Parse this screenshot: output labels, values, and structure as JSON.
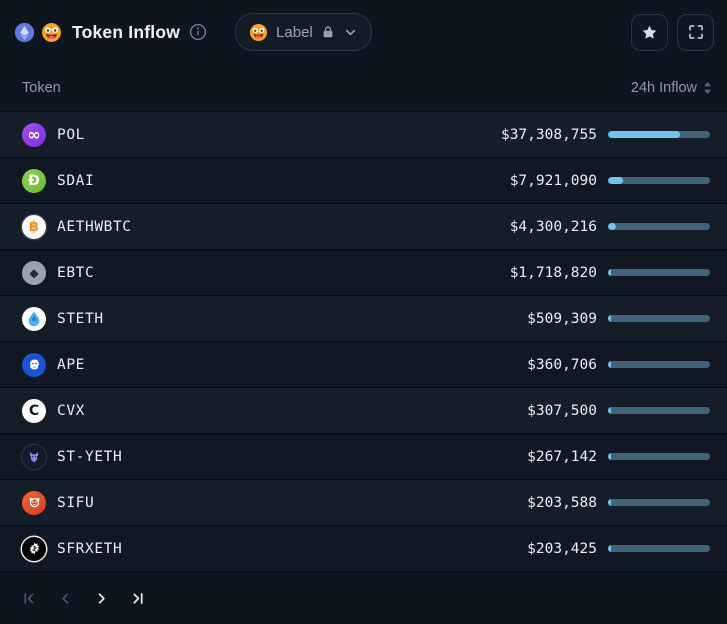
{
  "header": {
    "chain_icon": "ethereum-icon",
    "emoji_icon": "smiley-emoji-icon",
    "title": "Token Inflow",
    "info_icon": "info-icon",
    "label_button": {
      "emoji_icon": "smiley-emoji-icon",
      "text": "Label",
      "lock_icon": "lock-icon",
      "chevron_icon": "chevron-down-icon"
    },
    "actions": {
      "favorite_icon": "star-icon",
      "fullscreen_icon": "expand-icon"
    }
  },
  "table": {
    "columns": [
      {
        "label": "Token",
        "align": "left"
      },
      {
        "label": "24h Inflow",
        "align": "right",
        "sortable": true
      }
    ],
    "rows": [
      {
        "token": "POL",
        "value": "$37,308,755",
        "value_num": 37308755,
        "bar_pct": 70.3,
        "icon": {
          "name": "pol-token-icon",
          "kind": "glyph",
          "glyph": "∞",
          "fs": 16,
          "fg": "#ffffff",
          "bg": "#7b2fe0",
          "bg2": "#a44df0"
        }
      },
      {
        "token": "SDAI",
        "value": "$7,921,090",
        "value_num": 7921090,
        "bar_pct": 14.9,
        "icon": {
          "name": "sdai-token-icon",
          "kind": "glyph",
          "glyph": "Đ",
          "fs": 14,
          "fg": "#ffffff",
          "bg": "#6fb83a",
          "bg2": "#8bd14f"
        }
      },
      {
        "token": "AETHWBTC",
        "value": "$4,300,216",
        "value_num": 4300216,
        "bar_pct": 8.1,
        "icon": {
          "name": "aethwbtc-token-icon",
          "kind": "glyph",
          "glyph": "฿",
          "fs": 14,
          "fg": "#f7931a",
          "bg": "#f8f9fa",
          "ring": "#343b46"
        }
      },
      {
        "token": "EBTC",
        "value": "$1,718,820",
        "value_num": 1718820,
        "bar_pct": 3.2,
        "icon": {
          "name": "ebtc-token-icon",
          "kind": "glyph",
          "glyph": "◆",
          "fs": 12,
          "fg": "#242b37",
          "bg": "#9aa1ac"
        }
      },
      {
        "token": "STETH",
        "value": "$509,309",
        "value_num": 509309,
        "bar_pct": 1.0,
        "icon": {
          "name": "steth-token-icon",
          "kind": "svg",
          "svg": "droplet",
          "bg": "#ffffff"
        }
      },
      {
        "token": "APE",
        "value": "$360,706",
        "value_num": 360706,
        "bar_pct": 0.7,
        "icon": {
          "name": "ape-token-icon",
          "kind": "svg",
          "svg": "ape",
          "bg": "#1b52d6"
        }
      },
      {
        "token": "CVX",
        "value": "$307,500",
        "value_num": 307500,
        "bar_pct": 0.6,
        "icon": {
          "name": "cvx-token-icon",
          "kind": "glyph",
          "glyph": "C",
          "fs": 14,
          "fg": "#16181d",
          "bg": "#ffffff"
        }
      },
      {
        "token": "ST-YETH",
        "value": "$267,142",
        "value_num": 267142,
        "bar_pct": 0.5,
        "icon": {
          "name": "st-yeth-token-icon",
          "kind": "svg",
          "svg": "yeth",
          "bg": "#141a28",
          "ring": "#262e3e"
        }
      },
      {
        "token": "SIFU",
        "value": "$203,588",
        "value_num": 203588,
        "bar_pct": 0.4,
        "icon": {
          "name": "sifu-token-icon",
          "kind": "svg",
          "svg": "panda",
          "bg": "#d83a2a",
          "bg2": "#f0672e"
        }
      },
      {
        "token": "SFRXETH",
        "value": "$203,425",
        "value_num": 203425,
        "bar_pct": 0.4,
        "icon": {
          "name": "sfrxeth-token-icon",
          "kind": "svg",
          "svg": "frax",
          "bg": "#050505",
          "ring": "#e8eaee"
        }
      }
    ]
  },
  "pagination": {
    "first_enabled": false,
    "prev_enabled": false,
    "next_enabled": true,
    "last_enabled": true
  },
  "colors": {
    "bar_fill": "#6fc3ee",
    "bar_track": "#42637a",
    "row_odd": "#151d28",
    "row_even": "#111823",
    "panel_bg": "#0e151f",
    "border": "#2b3544",
    "muted_text": "#8d98a8"
  }
}
